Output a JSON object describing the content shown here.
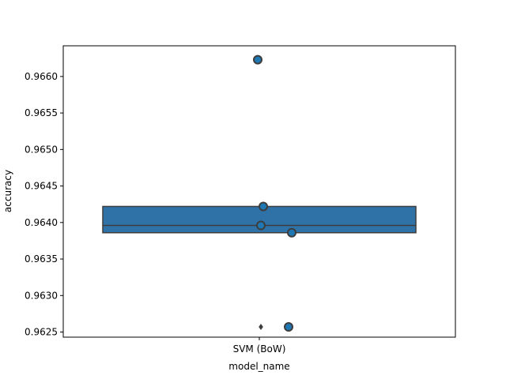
{
  "chart_data": {
    "type": "box",
    "title": "",
    "xlabel": "model_name",
    "ylabel": "accuracy",
    "categories": [
      "SVM (BoW)"
    ],
    "ylim": [
      0.96243,
      0.96642
    ],
    "yticks": [
      0.9625,
      0.963,
      0.9635,
      0.964,
      0.9645,
      0.965,
      0.9655,
      0.966
    ],
    "ytick_labels": [
      "0.9625",
      "0.9630",
      "0.9635",
      "0.9640",
      "0.9645",
      "0.9650",
      "0.9655",
      "0.9660"
    ],
    "grid": false,
    "box": {
      "category": "SVM (BoW)",
      "q1": 0.96386,
      "median": 0.96396,
      "q3": 0.96422,
      "whisker_low": 0.96386,
      "whisker_high": 0.96422,
      "outliers": [
        0.96623,
        0.96257
      ]
    },
    "points": [
      {
        "category": "SVM (BoW)",
        "y": 0.96623
      },
      {
        "category": "SVM (BoW)",
        "y": 0.96422
      },
      {
        "category": "SVM (BoW)",
        "y": 0.96396
      },
      {
        "category": "SVM (BoW)",
        "y": 0.96386
      },
      {
        "category": "SVM (BoW)",
        "y": 0.96257
      }
    ],
    "colors": {
      "box_fill": "#2f72a8",
      "box_edge": "#3d3d3d",
      "point_fill": "#1f77b4",
      "point_edge": "#3d3d3d",
      "outlier": "#3d3d3d"
    }
  }
}
